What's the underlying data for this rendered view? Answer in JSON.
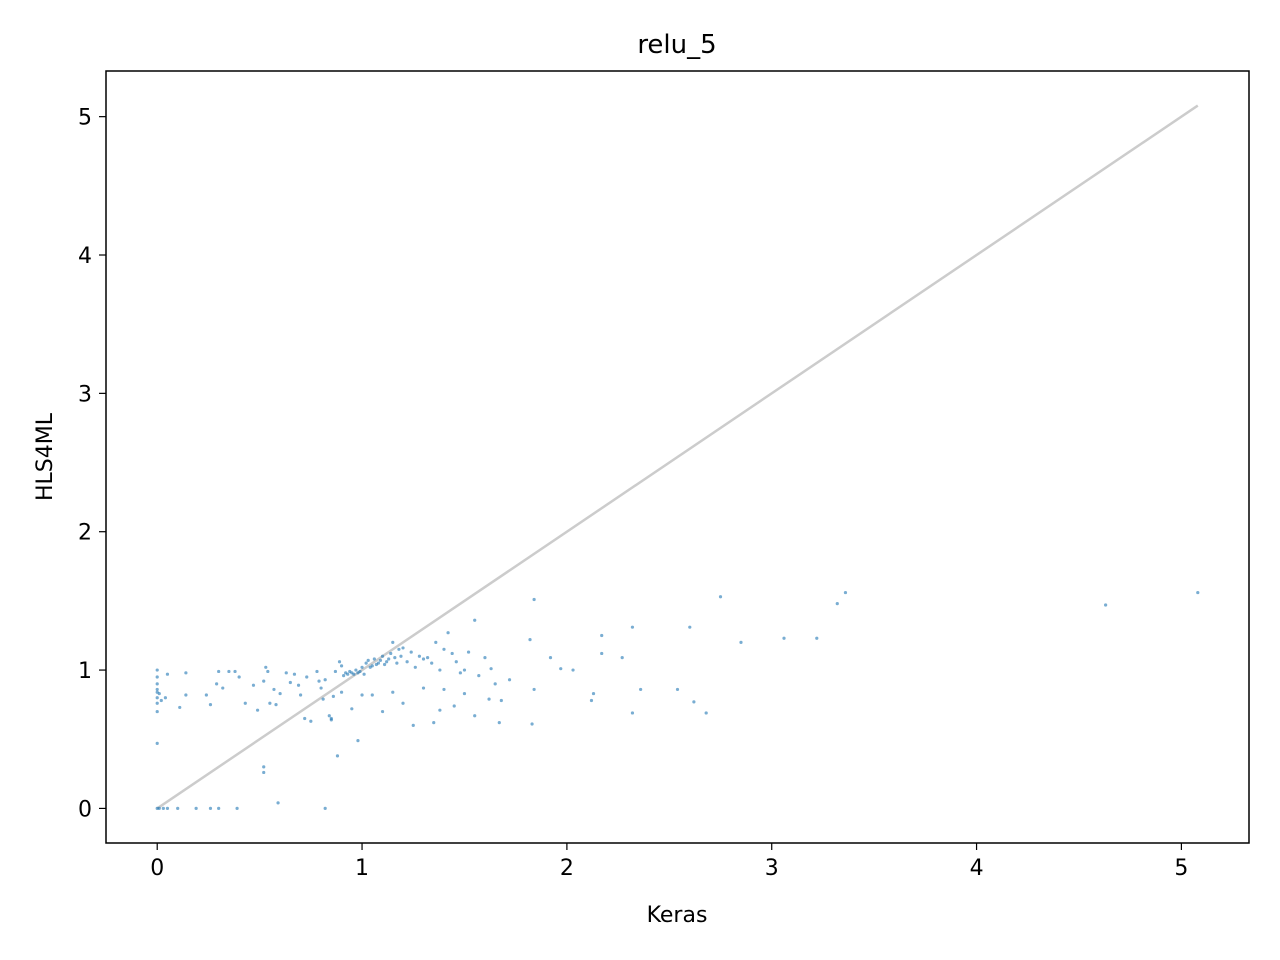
{
  "chart_data": {
    "type": "scatter",
    "title": "relu_5",
    "xlabel": "Keras",
    "ylabel": "HLS4ML",
    "xlim": [
      -0.25,
      5.33
    ],
    "ylim": [
      -0.25,
      5.33
    ],
    "xticks": [
      "0",
      "1",
      "2",
      "3",
      "4",
      "5"
    ],
    "yticks": [
      "0",
      "1",
      "2",
      "3",
      "4",
      "5"
    ],
    "grid": false,
    "reference_line": {
      "x": [
        0,
        5.08
      ],
      "y": [
        0,
        5.08
      ],
      "color": "#cccccc"
    },
    "points_color": "#1f77b4",
    "points": [
      [
        0,
        0
      ],
      [
        0.01,
        0
      ],
      [
        0.03,
        0
      ],
      [
        0.05,
        0
      ],
      [
        0.1,
        0
      ],
      [
        0.19,
        0
      ],
      [
        0.26,
        0
      ],
      [
        0.3,
        0
      ],
      [
        0.39,
        0
      ],
      [
        0.59,
        0.04
      ],
      [
        0.82,
        0
      ],
      [
        0,
        1.0
      ],
      [
        0,
        0.95
      ],
      [
        0,
        0.9
      ],
      [
        0,
        0.86
      ],
      [
        0,
        0.84
      ],
      [
        0,
        0.8
      ],
      [
        0,
        0.76
      ],
      [
        0,
        0.7
      ],
      [
        0,
        0.47
      ],
      [
        0.01,
        0.83
      ],
      [
        0.02,
        0.78
      ],
      [
        0.04,
        0.8
      ],
      [
        0.05,
        0.97
      ],
      [
        0.11,
        0.73
      ],
      [
        0.14,
        0.98
      ],
      [
        0.14,
        0.82
      ],
      [
        0.24,
        0.82
      ],
      [
        0.26,
        0.75
      ],
      [
        0.29,
        0.9
      ],
      [
        0.3,
        0.99
      ],
      [
        0.32,
        0.87
      ],
      [
        0.35,
        0.99
      ],
      [
        0.38,
        0.99
      ],
      [
        0.4,
        0.95
      ],
      [
        0.43,
        0.76
      ],
      [
        0.47,
        0.89
      ],
      [
        0.49,
        0.71
      ],
      [
        0.52,
        0.92
      ],
      [
        0.53,
        1.02
      ],
      [
        0.54,
        0.99
      ],
      [
        0.55,
        0.76
      ],
      [
        0.57,
        0.86
      ],
      [
        0.58,
        0.75
      ],
      [
        0.6,
        0.83
      ],
      [
        0.63,
        0.98
      ],
      [
        0.65,
        0.91
      ],
      [
        0.67,
        0.97
      ],
      [
        0.69,
        0.89
      ],
      [
        0.7,
        0.82
      ],
      [
        0.72,
        0.65
      ],
      [
        0.73,
        0.95
      ],
      [
        0.75,
        0.63
      ],
      [
        0.78,
        0.99
      ],
      [
        0.79,
        0.92
      ],
      [
        0.8,
        0.87
      ],
      [
        0.81,
        0.79
      ],
      [
        0.82,
        0.93
      ],
      [
        0.84,
        0.67
      ],
      [
        0.85,
        0.65
      ],
      [
        0.85,
        0.64
      ],
      [
        0.86,
        0.81
      ],
      [
        0.87,
        0.99
      ],
      [
        0.88,
        0.38
      ],
      [
        0.89,
        1.06
      ],
      [
        0.9,
        1.03
      ],
      [
        0.91,
        0.96
      ],
      [
        0.92,
        0.98
      ],
      [
        0.93,
        0.97
      ],
      [
        0.94,
        0.99
      ],
      [
        0.95,
        0.98
      ],
      [
        0.96,
        0.97
      ],
      [
        0.97,
        1.0
      ],
      [
        0.98,
        0.98
      ],
      [
        0.99,
        0.99
      ],
      [
        1.0,
        1.02
      ],
      [
        1.01,
        0.97
      ],
      [
        1.02,
        1.05
      ],
      [
        1.03,
        1.07
      ],
      [
        1.04,
        1.02
      ],
      [
        1.05,
        1.03
      ],
      [
        1.06,
        1.08
      ],
      [
        1.07,
        1.04
      ],
      [
        1.08,
        1.05
      ],
      [
        1.09,
        1.07
      ],
      [
        1.1,
        1.1
      ],
      [
        1.11,
        1.04
      ],
      [
        1.12,
        1.06
      ],
      [
        1.13,
        1.08
      ],
      [
        1.14,
        1.12
      ],
      [
        1.15,
        1.2
      ],
      [
        1.16,
        1.09
      ],
      [
        1.17,
        1.05
      ],
      [
        1.18,
        1.15
      ],
      [
        1.19,
        1.1
      ],
      [
        1.2,
        1.16
      ],
      [
        1.22,
        1.06
      ],
      [
        1.24,
        1.13
      ],
      [
        1.26,
        1.02
      ],
      [
        1.28,
        1.1
      ],
      [
        1.3,
        1.08
      ],
      [
        1.32,
        1.09
      ],
      [
        1.34,
        1.05
      ],
      [
        1.36,
        1.2
      ],
      [
        1.38,
        1.0
      ],
      [
        1.4,
        1.15
      ],
      [
        1.42,
        1.27
      ],
      [
        1.44,
        1.12
      ],
      [
        1.46,
        1.06
      ],
      [
        1.48,
        0.98
      ],
      [
        1.5,
        1.0
      ],
      [
        1.52,
        1.13
      ],
      [
        1.55,
        1.36
      ],
      [
        1.57,
        0.96
      ],
      [
        1.6,
        1.09
      ],
      [
        1.63,
        1.01
      ],
      [
        1.65,
        0.9
      ],
      [
        1.68,
        0.78
      ],
      [
        1.72,
        0.93
      ],
      [
        0.9,
        0.84
      ],
      [
        0.95,
        0.72
      ],
      [
        0.98,
        0.49
      ],
      [
        1.0,
        0.82
      ],
      [
        1.05,
        0.82
      ],
      [
        1.1,
        0.7
      ],
      [
        1.15,
        0.84
      ],
      [
        1.2,
        0.76
      ],
      [
        1.25,
        0.6
      ],
      [
        1.3,
        0.87
      ],
      [
        1.35,
        0.62
      ],
      [
        1.38,
        0.71
      ],
      [
        1.4,
        0.86
      ],
      [
        1.45,
        0.74
      ],
      [
        1.5,
        0.83
      ],
      [
        1.55,
        0.67
      ],
      [
        1.62,
        0.79
      ],
      [
        1.67,
        0.62
      ],
      [
        0.52,
        0.3
      ],
      [
        0.52,
        0.26
      ],
      [
        1.82,
        1.22
      ],
      [
        1.84,
        1.51
      ],
      [
        1.84,
        0.86
      ],
      [
        1.83,
        0.61
      ],
      [
        1.92,
        1.09
      ],
      [
        1.97,
        1.01
      ],
      [
        2.03,
        1.0
      ],
      [
        2.12,
        0.78
      ],
      [
        2.13,
        0.83
      ],
      [
        2.17,
        1.25
      ],
      [
        2.17,
        1.12
      ],
      [
        2.27,
        1.09
      ],
      [
        2.32,
        1.31
      ],
      [
        2.32,
        0.69
      ],
      [
        2.36,
        0.86
      ],
      [
        2.54,
        0.86
      ],
      [
        2.6,
        1.31
      ],
      [
        2.62,
        0.77
      ],
      [
        2.68,
        0.69
      ],
      [
        2.75,
        1.53
      ],
      [
        2.85,
        1.2
      ],
      [
        3.06,
        1.23
      ],
      [
        3.22,
        1.23
      ],
      [
        3.32,
        1.48
      ],
      [
        3.36,
        1.56
      ],
      [
        4.63,
        1.47
      ],
      [
        5.08,
        1.56
      ]
    ]
  }
}
